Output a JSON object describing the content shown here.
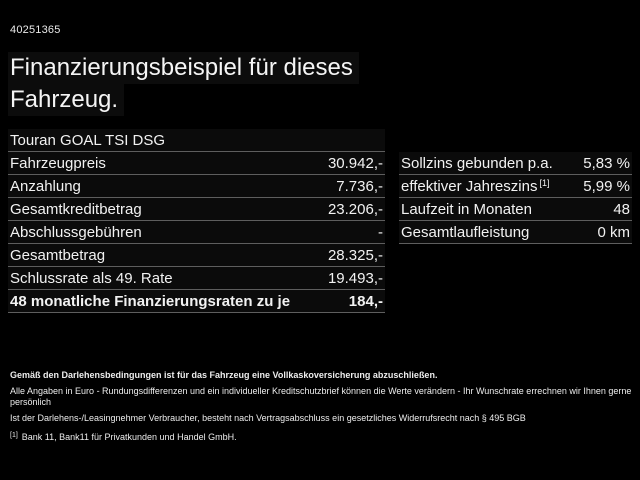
{
  "header": {
    "offer_id": "40251365",
    "title_line1": "Finanzierungsbeispiel für dieses",
    "title_line2": "Fahrzeug."
  },
  "model": "Touran GOAL TSI DSG",
  "left_table": {
    "rows": [
      {
        "label": "Fahrzeugpreis",
        "value": "30.942,-"
      },
      {
        "label": "Anzahlung",
        "value": "7.736,-"
      },
      {
        "label": "Gesamtkreditbetrag",
        "value": "23.206,-"
      },
      {
        "label": "Abschlussgebühren",
        "value": "-"
      },
      {
        "label": "Gesamtbetrag",
        "value": "28.325,-"
      },
      {
        "label": "Schlussrate als 49. Rate",
        "value": "19.493,-"
      },
      {
        "label": "48 monatliche Finanzierungsraten zu je",
        "value": "184,-"
      }
    ]
  },
  "right_table": {
    "rows": [
      {
        "label": "Sollzins gebunden p.a.",
        "sup": "",
        "value": "5,83 %"
      },
      {
        "label": "effektiver Jahreszins",
        "sup": "[1]",
        "value": "5,99 %"
      },
      {
        "label": "Laufzeit in Monaten",
        "sup": "",
        "value": "48"
      },
      {
        "label": "Gesamtlaufleistung",
        "sup": "",
        "value": "0 km"
      }
    ]
  },
  "footer": {
    "bold_line": "Gemäß den Darlehensbedingungen ist für das Fahrzeug eine Vollkaskoversicherung abzuschließen.",
    "line2": "Alle Angaben in Euro - Rundungsdifferenzen und ein individueller Kreditschutzbrief können die Werte verändern - Ihr Wunschrate errechnen wir Ihnen gerne persönlich",
    "line3": "Ist der Darlehens-/Leasingnehmer Verbraucher, besteht nach Vertragsabschluss ein gesetzliches Widerrufsrecht nach § 495 BGB",
    "footnote_marker": "[1]",
    "footnote_text": "Bank 11, Bank11 für Privatkunden und Handel GmbH."
  },
  "colors": {
    "background": "#000000",
    "text": "#f2f2f2",
    "separator": "#5e5e5e",
    "row_background": "#0b0b0b"
  }
}
